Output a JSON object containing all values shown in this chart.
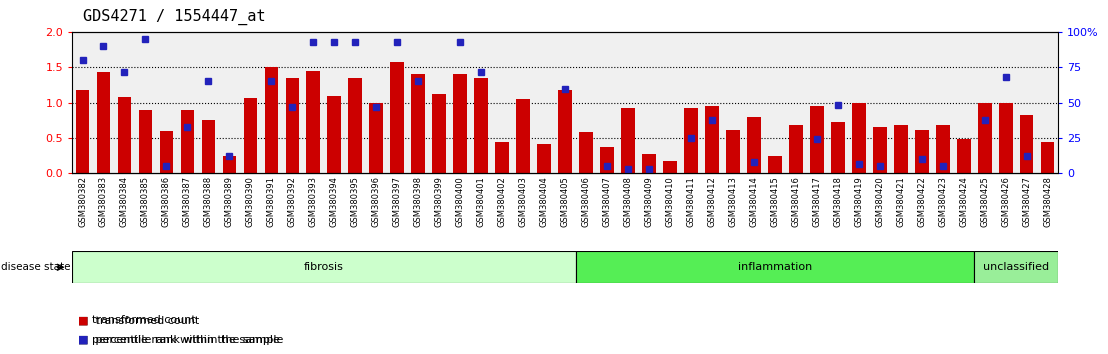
{
  "title": "GDS4271 / 1554447_at",
  "samples": [
    "GSM380382",
    "GSM380383",
    "GSM380384",
    "GSM380385",
    "GSM380386",
    "GSM380387",
    "GSM380388",
    "GSM380389",
    "GSM380390",
    "GSM380391",
    "GSM380392",
    "GSM380393",
    "GSM380394",
    "GSM380395",
    "GSM380396",
    "GSM380397",
    "GSM380398",
    "GSM380399",
    "GSM380400",
    "GSM380401",
    "GSM380402",
    "GSM380403",
    "GSM380404",
    "GSM380405",
    "GSM380406",
    "GSM380407",
    "GSM380408",
    "GSM380409",
    "GSM380410",
    "GSM380411",
    "GSM380412",
    "GSM380413",
    "GSM380414",
    "GSM380415",
    "GSM380416",
    "GSM380417",
    "GSM380418",
    "GSM380419",
    "GSM380420",
    "GSM380421",
    "GSM380422",
    "GSM380423",
    "GSM380424",
    "GSM380425",
    "GSM380426",
    "GSM380427",
    "GSM380428"
  ],
  "red_values": [
    1.18,
    1.43,
    1.08,
    0.9,
    0.6,
    0.9,
    0.75,
    0.25,
    1.06,
    1.5,
    1.35,
    1.45,
    1.1,
    1.35,
    1.0,
    1.58,
    1.4,
    1.12,
    1.4,
    1.35,
    0.45,
    1.05,
    0.42,
    1.18,
    0.58,
    0.38,
    0.92,
    0.28,
    0.18,
    0.92,
    0.95,
    0.62,
    0.8,
    0.25,
    0.68,
    0.95,
    0.72,
    1.0,
    0.65,
    0.68,
    0.62,
    0.68,
    0.48,
    1.0,
    1.0,
    0.82,
    0.45
  ],
  "blue_percentiles": [
    80,
    90,
    72,
    95,
    5,
    33,
    65,
    12,
    null,
    65,
    47,
    93,
    93,
    93,
    47,
    93,
    65,
    null,
    93,
    72,
    null,
    null,
    null,
    60,
    null,
    5,
    3,
    3,
    null,
    25,
    38,
    null,
    8,
    null,
    null,
    24,
    48,
    7,
    5,
    null,
    10,
    5,
    null,
    38,
    68,
    12,
    null
  ],
  "groups": [
    {
      "label": "fibrosis",
      "start": 0,
      "end": 23,
      "color": "#ccffcc"
    },
    {
      "label": "inflammation",
      "start": 24,
      "end": 42,
      "color": "#55ee55"
    },
    {
      "label": "unclassified",
      "start": 43,
      "end": 46,
      "color": "#99ee99"
    }
  ],
  "bar_color": "#cc0000",
  "dot_color": "#2222bb",
  "bar_width": 0.65,
  "plot_bg": "#f0f0f0",
  "yticks_left": [
    0,
    0.5,
    1.0,
    1.5,
    2.0
  ],
  "yticks_right": [
    0,
    25,
    50,
    75,
    100
  ],
  "hlines": [
    0.5,
    1.0,
    1.5
  ]
}
